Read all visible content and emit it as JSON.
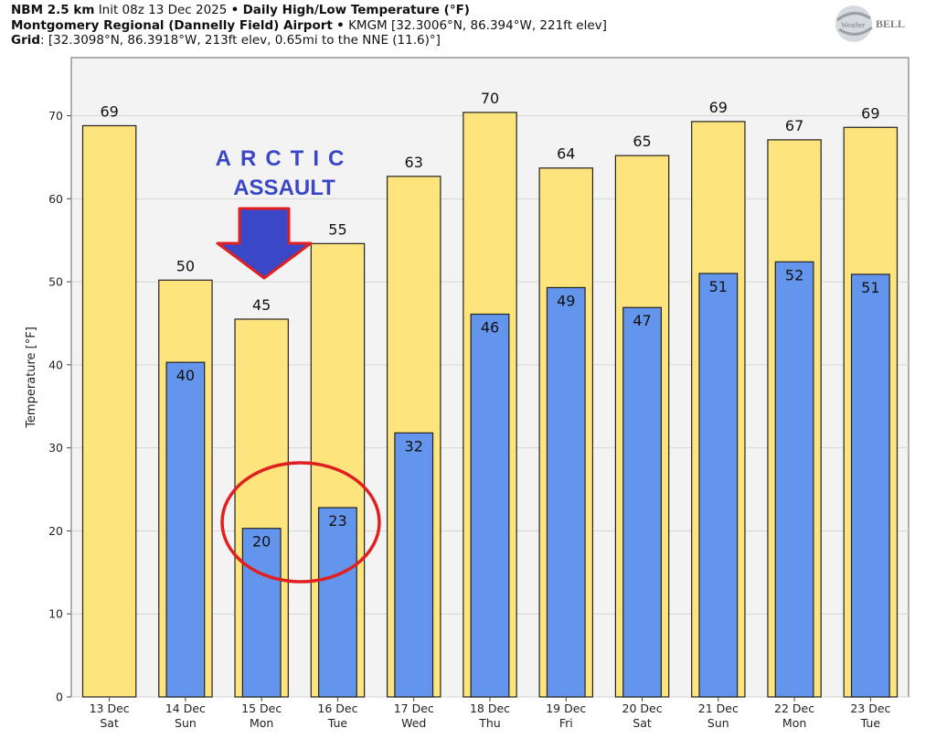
{
  "header": {
    "line1_model": "NBM 2.5 km",
    "line1_init": "Init 08z 13 Dec 2025",
    "line1_sep": "•",
    "line1_title": "Daily High/Low Temperature (°F)",
    "line2_station": "Montgomery Regional (Dannelly Field) Airport",
    "line2_sep": "•",
    "line2_detail": "KMGM [32.3006°N, 86.394°W, 221ft elev]",
    "line3_label": "Grid",
    "line3_detail": ": [32.3098°N, 86.3918°W, 213ft elev, 0.65mi to the NNE (11.6)°]"
  },
  "logo": {
    "text_pre": "Weather",
    "text_post": "BELL"
  },
  "annotations": {
    "line1": "ARCTIC",
    "line2": "ASSAULT",
    "arrow_color": "#3a47c7",
    "circle_color": "#e02020"
  },
  "chart_data": {
    "type": "bar",
    "ylabel": "Temperature [°F]",
    "ylim": [
      0,
      77
    ],
    "yticks": [
      0,
      10,
      20,
      30,
      40,
      50,
      60,
      70
    ],
    "grid": true,
    "categories": [
      [
        "13 Dec",
        "Sat"
      ],
      [
        "14 Dec",
        "Sun"
      ],
      [
        "15 Dec",
        "Mon"
      ],
      [
        "16 Dec",
        "Tue"
      ],
      [
        "17 Dec",
        "Wed"
      ],
      [
        "18 Dec",
        "Thu"
      ],
      [
        "19 Dec",
        "Fri"
      ],
      [
        "20 Dec",
        "Sat"
      ],
      [
        "21 Dec",
        "Sun"
      ],
      [
        "22 Dec",
        "Mon"
      ],
      [
        "23 Dec",
        "Tue"
      ]
    ],
    "series": [
      {
        "values": [
          68.8,
          50.2,
          45.5,
          54.6,
          62.7,
          70.4,
          63.7,
          65.2,
          69.3,
          67.1,
          68.6
        ],
        "labels": [
          "69",
          "50",
          "45",
          "55",
          "63",
          "70",
          "64",
          "65",
          "69",
          "67",
          "69"
        ],
        "color": "#fde47c"
      },
      {
        "values": [
          null,
          40.3,
          20.3,
          22.8,
          31.8,
          46.1,
          49.3,
          46.9,
          51.0,
          52.4,
          50.9
        ],
        "labels": [
          null,
          "40",
          "20",
          "23",
          "32",
          "46",
          "49",
          "47",
          "51",
          "52",
          "51"
        ],
        "color": "#6495ed"
      }
    ]
  }
}
